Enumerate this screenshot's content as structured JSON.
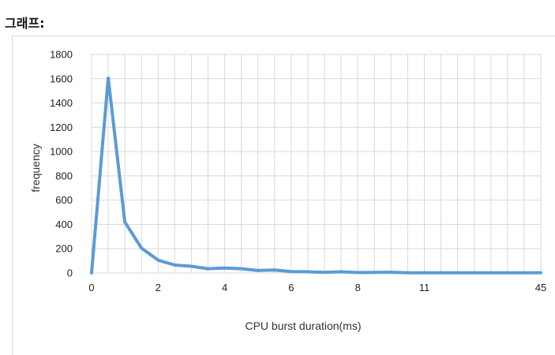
{
  "page": {
    "heading": "그래프:"
  },
  "chart_data": {
    "type": "line",
    "title": "",
    "xlabel": "CPU burst duration(ms)",
    "ylabel": "frequency",
    "ylim": [
      0,
      1800
    ],
    "yticks": [
      0,
      200,
      400,
      600,
      800,
      1000,
      1200,
      1400,
      1600,
      1800
    ],
    "xtick_labels": [
      {
        "index": 0,
        "label": "0"
      },
      {
        "index": 4,
        "label": "2"
      },
      {
        "index": 8,
        "label": "4"
      },
      {
        "index": 12,
        "label": "6"
      },
      {
        "index": 16,
        "label": "8"
      },
      {
        "index": 20,
        "label": "11"
      },
      {
        "index": 27,
        "label": "45"
      }
    ],
    "grid": true,
    "line_color": "#5b9bd5",
    "series": [
      {
        "values": [
          0,
          1605,
          420,
          205,
          105,
          65,
          55,
          35,
          40,
          35,
          20,
          25,
          12,
          10,
          5,
          10,
          3,
          5,
          6,
          2,
          2,
          1,
          1,
          1,
          1,
          1,
          1,
          1
        ]
      }
    ]
  }
}
